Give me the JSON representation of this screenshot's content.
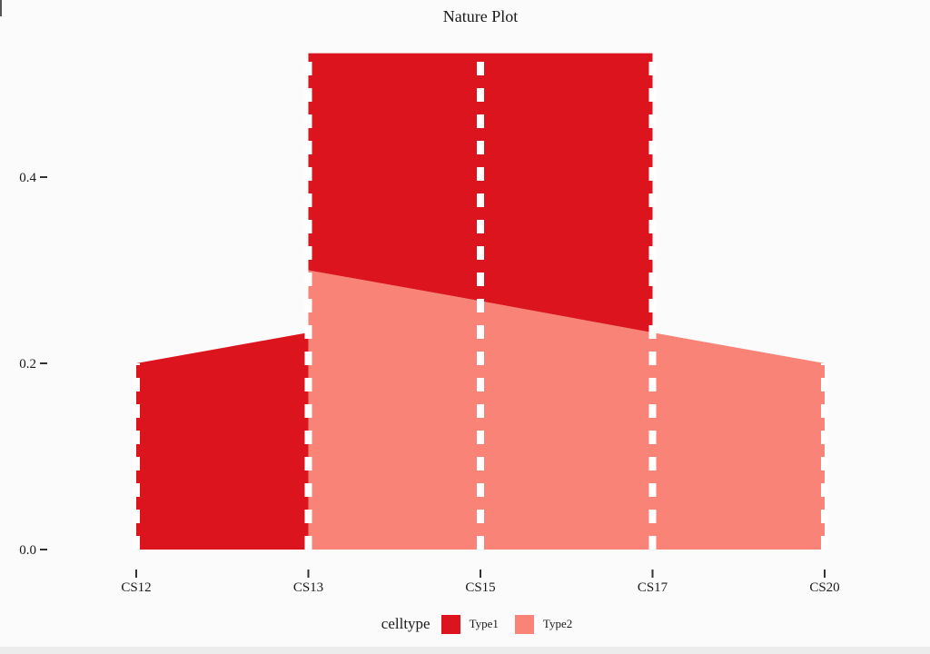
{
  "page": {
    "background": "#FBFBFB",
    "bottom_strip_color": "#ECECEC"
  },
  "chart_data": {
    "type": "area",
    "variant": "stacked-proportion-ribbons",
    "title": "Nature Plot",
    "categories": [
      "CS12",
      "CS13",
      "CS15",
      "CS17",
      "CS20"
    ],
    "series": [
      {
        "name": "Type1",
        "color": "#DC141E",
        "values": [
          0.2,
          0.233,
          0.267,
          0.3,
          0
        ]
      },
      {
        "name": "Type2",
        "color": "#F98377",
        "values": [
          0,
          0.3,
          0.267,
          0.233,
          0.2
        ]
      }
    ],
    "ribbons": [
      {
        "series": "Type1",
        "from": 0,
        "to": 1,
        "top": [
          0.2,
          0.233
        ],
        "bottom": [
          0,
          0
        ]
      },
      {
        "series": "Type2",
        "from": 1,
        "to": 4,
        "top": [
          0.3,
          0.267,
          0.233,
          0.2
        ],
        "bottom": [
          0,
          0,
          0,
          0
        ]
      },
      {
        "series": "Type1",
        "from": 1,
        "to": 3,
        "top": [
          0.533,
          0.533,
          0.533
        ],
        "bottom": [
          0.3,
          0.267,
          0.233
        ]
      }
    ],
    "yticks": [
      {
        "label": "0.0",
        "value": 0.0
      },
      {
        "label": "0.2",
        "value": 0.2
      },
      {
        "label": "0.4",
        "value": 0.4
      }
    ],
    "ylim": [
      0,
      0.545
    ],
    "xlabel": "",
    "ylabel": "",
    "grid": false,
    "guides": {
      "style": "dashed",
      "color": "#FFFFFF"
    },
    "legend": {
      "title": "celltype",
      "position": "bottom"
    },
    "axis_text_color": "#1A1A1A",
    "tick_color": "#333333"
  }
}
